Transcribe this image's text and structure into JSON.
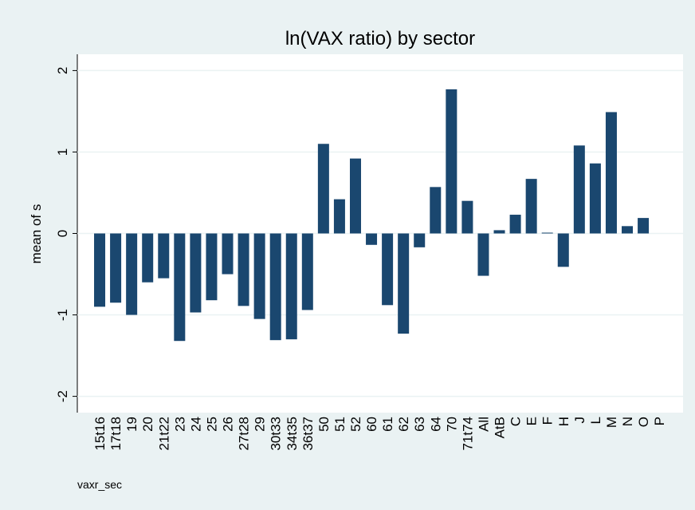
{
  "chart_data": {
    "type": "bar",
    "title": "ln(VAX ratio) by sector",
    "y_label": "mean of s",
    "x_label": "vaxr_sec",
    "categories": [
      "15t16",
      "17t18",
      "19",
      "20",
      "21t22",
      "23",
      "24",
      "25",
      "26",
      "27t28",
      "29",
      "30t33",
      "34t35",
      "36t37",
      "50",
      "51",
      "52",
      "60",
      "61",
      "62",
      "63",
      "64",
      "70",
      "71t74",
      "All",
      "AtB",
      "C",
      "E",
      "F",
      "H",
      "J",
      "L",
      "M",
      "N",
      "O",
      "P"
    ],
    "values": [
      -0.9,
      -0.85,
      -1.0,
      -0.6,
      -0.55,
      -1.32,
      -0.97,
      -0.82,
      -0.5,
      -0.89,
      -1.05,
      -1.31,
      -1.3,
      -0.94,
      1.1,
      0.42,
      0.92,
      -0.14,
      -0.88,
      -1.23,
      -0.17,
      0.57,
      1.77,
      0.4,
      -0.52,
      0.04,
      0.23,
      0.67,
      0.01,
      -0.41,
      1.08,
      0.86,
      1.49,
      0.09,
      0.19,
      null
    ],
    "color": "#1a476f",
    "ylim": [
      -2.2,
      2.2
    ],
    "yticks": [
      -2,
      -1,
      0,
      1,
      2
    ],
    "grid": true
  }
}
